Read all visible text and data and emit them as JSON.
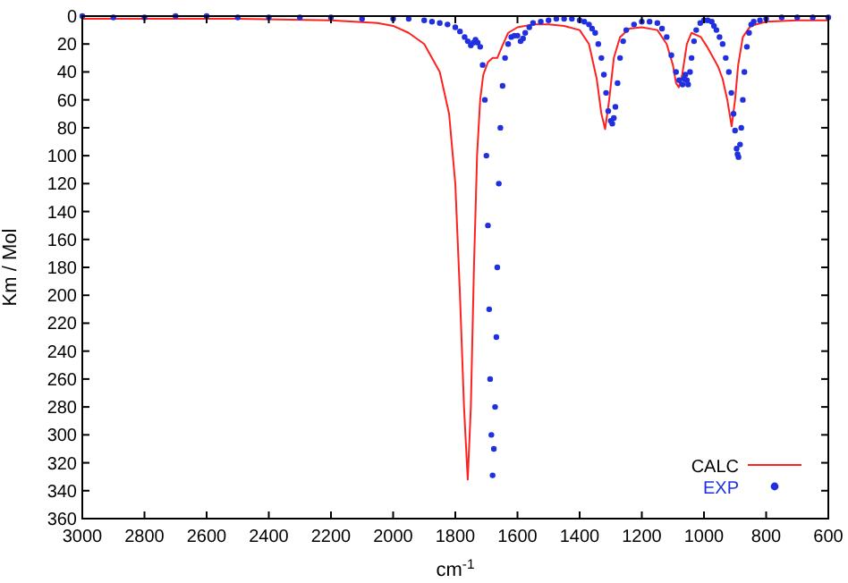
{
  "chart_data": {
    "type": "line",
    "xlabel": "cm$^{-1}$",
    "ylabel": "Km / Mol",
    "xlim": [
      3000,
      600
    ],
    "ylim": [
      360,
      0
    ],
    "xticks": [
      3000,
      2800,
      2600,
      2400,
      2200,
      2000,
      1800,
      1600,
      1400,
      1200,
      1000,
      800,
      600
    ],
    "yticks": [
      0,
      20,
      40,
      60,
      80,
      100,
      120,
      140,
      160,
      180,
      200,
      220,
      240,
      260,
      280,
      300,
      320,
      340,
      360
    ],
    "legend": "bottom right",
    "grid": false,
    "series": [
      {
        "name": "CALC",
        "color": "#ff2020",
        "x": [
          3000,
          2500,
          2200,
          2050,
          2000,
          1950,
          1900,
          1850,
          1820,
          1800,
          1785,
          1772,
          1760,
          1750,
          1740,
          1730,
          1720,
          1710,
          1695,
          1680,
          1665,
          1650,
          1630,
          1600,
          1550,
          1500,
          1450,
          1400,
          1370,
          1345,
          1330,
          1318,
          1305,
          1290,
          1270,
          1240,
          1200,
          1150,
          1120,
          1100,
          1090,
          1081,
          1070,
          1055,
          1040,
          1010,
          990,
          970,
          955,
          940,
          925,
          911,
          900,
          890,
          875,
          850,
          800,
          700,
          600
        ],
        "values": [
          2,
          2,
          3,
          5,
          7,
          12,
          20,
          40,
          70,
          120,
          200,
          280,
          332,
          280,
          180,
          100,
          60,
          42,
          33,
          30,
          30,
          22,
          12,
          8,
          6,
          6,
          7,
          10,
          20,
          45,
          70,
          81,
          60,
          30,
          15,
          9,
          8,
          10,
          20,
          35,
          48,
          51,
          42,
          20,
          12,
          15,
          22,
          30,
          36,
          45,
          60,
          79,
          60,
          35,
          15,
          7,
          4,
          3,
          3
        ]
      },
      {
        "name": "EXP",
        "type": "scatter",
        "color": "#2030e0",
        "marker": "circle",
        "x": [
          3000,
          2900,
          2800,
          2700,
          2600,
          2500,
          2400,
          2300,
          2200,
          2100,
          2000,
          1950,
          1900,
          1875,
          1850,
          1825,
          1800,
          1785,
          1770,
          1760,
          1750,
          1742,
          1735,
          1728,
          1720,
          1712,
          1705,
          1700,
          1695,
          1691,
          1688,
          1684,
          1680,
          1676,
          1672,
          1668,
          1665,
          1660,
          1655,
          1648,
          1640,
          1630,
          1620,
          1610,
          1600,
          1590,
          1582,
          1575,
          1562,
          1550,
          1525,
          1500,
          1475,
          1450,
          1425,
          1400,
          1385,
          1370,
          1360,
          1350,
          1340,
          1330,
          1322,
          1315,
          1308,
          1300,
          1295,
          1290,
          1285,
          1278,
          1270,
          1260,
          1250,
          1225,
          1200,
          1175,
          1150,
          1135,
          1120,
          1105,
          1090,
          1080,
          1069,
          1064,
          1060,
          1055,
          1051,
          1045,
          1040,
          1032,
          1025,
          1012,
          1000,
          988,
          975,
          968,
          960,
          950,
          940,
          930,
          920,
          912,
          905,
          900,
          895,
          892,
          889,
          884,
          880,
          875,
          870,
          862,
          855,
          848,
          840,
          820,
          800,
          750,
          700,
          650,
          600
        ],
        "values": [
          0,
          1,
          1,
          0,
          0,
          1,
          1,
          1,
          1,
          2,
          2,
          2,
          3,
          4,
          5,
          6,
          8,
          11,
          15,
          18,
          21,
          19,
          17,
          19,
          22,
          35,
          60,
          100,
          150,
          210,
          260,
          300,
          329,
          310,
          280,
          230,
          180,
          120,
          80,
          50,
          30,
          20,
          15,
          14,
          14,
          18,
          16,
          12,
          8,
          5,
          4,
          3,
          2,
          2,
          2,
          3,
          4,
          6,
          9,
          12,
          20,
          30,
          42,
          55,
          68,
          75,
          77,
          73,
          65,
          48,
          30,
          18,
          10,
          6,
          4,
          4,
          5,
          9,
          15,
          28,
          40,
          46,
          49,
          45,
          42,
          46,
          49,
          40,
          30,
          18,
          10,
          5,
          3,
          3,
          4,
          7,
          10,
          15,
          20,
          30,
          40,
          55,
          70,
          82,
          95,
          99,
          101,
          92,
          80,
          60,
          40,
          22,
          12,
          6,
          4,
          3,
          2,
          1,
          1,
          1,
          1
        ]
      }
    ]
  }
}
